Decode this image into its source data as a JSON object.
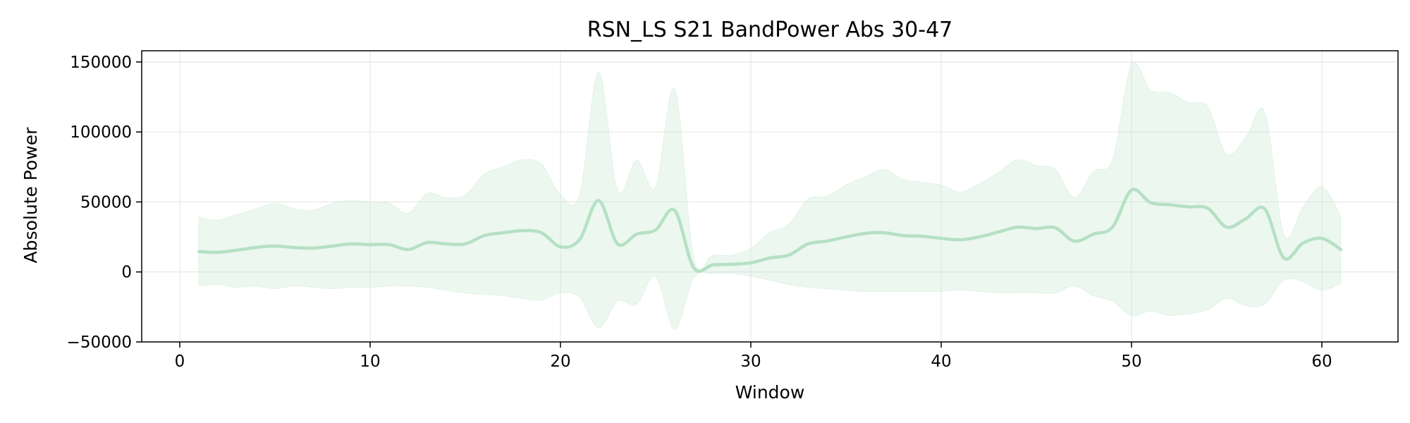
{
  "chart_data": {
    "type": "line",
    "title": "RSN_LS S21 BandPower Abs 30-47",
    "xlabel": "Window",
    "ylabel": "Absolute Power",
    "xlim": [
      -2,
      64
    ],
    "ylim": [
      -50000,
      158000
    ],
    "xticks": [
      0,
      10,
      20,
      30,
      40,
      50,
      60
    ],
    "yticks": [
      -50000,
      0,
      50000,
      100000,
      150000
    ],
    "xtick_labels": [
      "0",
      "10",
      "20",
      "30",
      "40",
      "50",
      "60"
    ],
    "ytick_labels": [
      "−50000",
      "0",
      "50000",
      "100000",
      "150000"
    ],
    "grid": true,
    "colors": {
      "line": "#b5e0c4",
      "band": "#c9e8d3",
      "grid": "#e6e6e6",
      "axes": "#000000"
    },
    "series": [
      {
        "x": [
          1,
          2,
          3,
          4,
          5,
          6,
          7,
          8,
          9,
          10,
          11,
          12,
          13,
          14,
          15,
          16,
          17,
          18,
          19,
          20,
          21,
          22,
          23,
          24,
          25,
          26,
          27,
          28,
          29,
          30,
          31,
          32,
          33,
          34,
          35,
          36,
          37,
          38,
          39,
          40,
          41,
          42,
          43,
          44,
          45,
          46,
          47,
          48,
          49,
          50,
          51,
          52,
          53,
          54,
          55,
          56,
          57,
          58,
          59,
          60,
          61
        ],
        "values": [
          14500,
          14000,
          15500,
          17500,
          18500,
          17500,
          17000,
          18500,
          20000,
          19500,
          19500,
          16000,
          21000,
          20000,
          20000,
          26000,
          28000,
          29500,
          28000,
          18000,
          23000,
          51000,
          20000,
          27000,
          30000,
          44000,
          3000,
          5000,
          5500,
          6500,
          10000,
          12000,
          20000,
          22000,
          25000,
          27500,
          28000,
          26000,
          25500,
          24000,
          23000,
          25000,
          28500,
          32000,
          31000,
          31500,
          22000,
          27000,
          32000,
          58500,
          49500,
          48000,
          46500,
          45500,
          32000,
          38000,
          45000,
          10000,
          20500,
          24000,
          16000
        ],
        "upper": [
          39000,
          37000,
          41000,
          45000,
          49000,
          45000,
          44000,
          49000,
          51000,
          50000,
          49000,
          42000,
          56000,
          53000,
          55000,
          70000,
          75000,
          80000,
          77000,
          55000,
          55000,
          143000,
          58000,
          80000,
          61000,
          131000,
          10000,
          12000,
          12000,
          17000,
          28000,
          34000,
          52000,
          54000,
          62000,
          68000,
          73000,
          66000,
          64000,
          62000,
          57000,
          63000,
          71000,
          80000,
          76000,
          73000,
          53000,
          72000,
          80000,
          148000,
          130000,
          128000,
          121000,
          118000,
          84000,
          96000,
          114000,
          27000,
          46000,
          61000,
          40000
        ],
        "lower": [
          -10000,
          -9000,
          -11000,
          -10000,
          -12000,
          -10000,
          -11000,
          -12000,
          -11000,
          -11000,
          -10000,
          -10000,
          -11000,
          -13000,
          -15000,
          -16000,
          -17000,
          -19000,
          -20000,
          -15000,
          -18000,
          -40000,
          -21000,
          -23000,
          -3000,
          -41000,
          -4000,
          -1000,
          -1000,
          -3000,
          -6000,
          -9000,
          -11000,
          -12000,
          -13000,
          -14000,
          -14000,
          -14000,
          -14000,
          -14000,
          -13000,
          -14000,
          -15000,
          -15000,
          -15000,
          -15000,
          -10000,
          -17000,
          -21000,
          -31000,
          -28000,
          -31000,
          -30000,
          -27000,
          -19000,
          -24000,
          -23000,
          -6000,
          -7000,
          -13000,
          -8000
        ]
      }
    ]
  }
}
